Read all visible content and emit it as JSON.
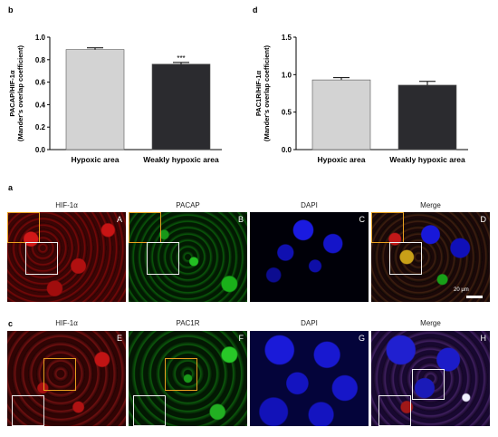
{
  "labels": {
    "b": "b",
    "d": "d",
    "a": "a",
    "c": "c"
  },
  "chart_data": [
    {
      "type": "bar",
      "categories": [
        "Hypoxic area",
        "Weakly hypoxic area"
      ],
      "values": [
        0.89,
        0.76
      ],
      "errors": [
        0.015,
        0.015
      ],
      "colors": [
        "#d3d3d3",
        "#2b2b2f"
      ],
      "ylabel_line1": "PACAP/HIF-1α",
      "ylabel_line2": "(Mander's overlap coefficient)",
      "ylim": [
        0,
        1.0
      ],
      "yticks": [
        "0.0",
        "0.2",
        "0.4",
        "0.6",
        "0.8",
        "1.0"
      ],
      "annotation": "***"
    },
    {
      "type": "bar",
      "categories": [
        "Hypoxic area",
        "Weakly hypoxic area"
      ],
      "values": [
        0.93,
        0.86
      ],
      "errors": [
        0.03,
        0.05
      ],
      "colors": [
        "#d3d3d3",
        "#2b2b2f"
      ],
      "ylabel_line1": "PAC1R/HIF-1α",
      "ylabel_line2": "(Mander's overlap coefficient)",
      "ylim": [
        0,
        1.5
      ],
      "yticks": [
        "0.0",
        "0.5",
        "1.0",
        "1.5"
      ]
    }
  ],
  "micro": {
    "row_a": {
      "headers": [
        "HIF-1α",
        "PACAP",
        "DAPI",
        "Merge"
      ],
      "letters": [
        "A",
        "B",
        "C",
        "D"
      ]
    },
    "row_c": {
      "headers": [
        "HIF-1α",
        "PAC1R",
        "DAPI",
        "Merge"
      ],
      "letters": [
        "E",
        "F",
        "G",
        "H"
      ]
    },
    "scale": "20 μm"
  }
}
